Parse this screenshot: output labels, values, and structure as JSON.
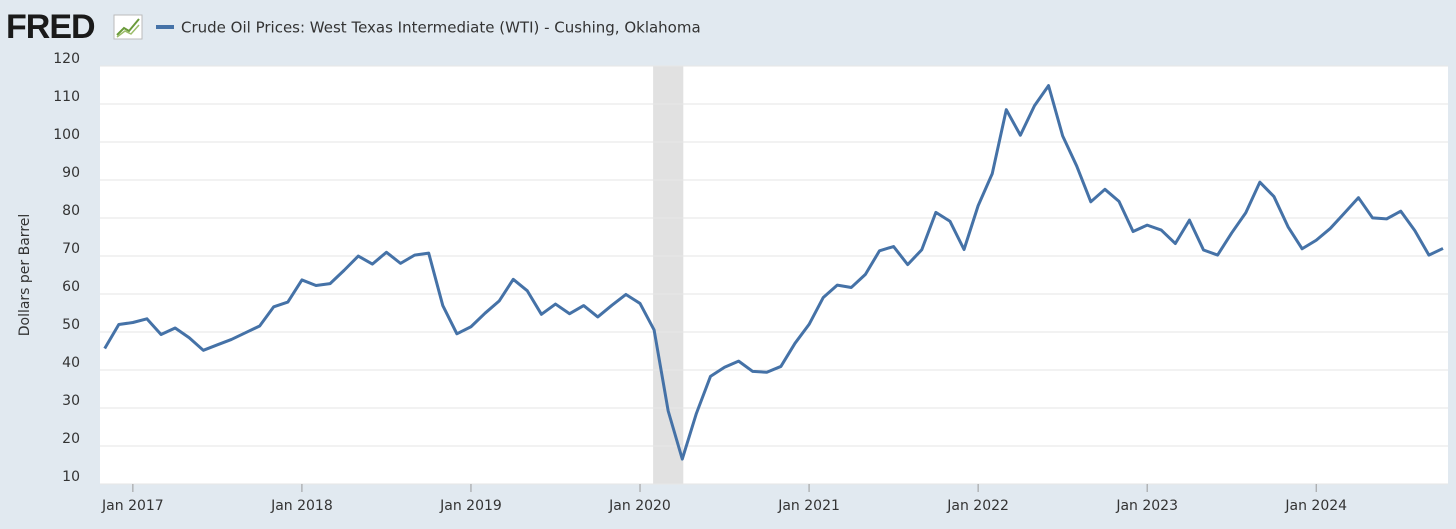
{
  "logo": "FRED",
  "chart_data": {
    "type": "line",
    "series": [
      {
        "name": "Crude Oil Prices: West Texas Intermediate (WTI) - Cushing, Oklahoma",
        "color": "#4572a7",
        "values": [
          45.66,
          51.97,
          52.5,
          53.47,
          49.33,
          51.06,
          48.48,
          45.18,
          46.63,
          48.04,
          49.82,
          51.58,
          56.64,
          57.88,
          63.7,
          62.23,
          62.73,
          66.25,
          69.98,
          67.87,
          70.98,
          68.06,
          70.23,
          70.75,
          56.96,
          49.52,
          51.38,
          54.95,
          58.15,
          63.86,
          60.83,
          54.66,
          57.35,
          54.81,
          56.95,
          53.96,
          57.03,
          59.88,
          57.52,
          50.54,
          29.21,
          16.55,
          28.56,
          38.31,
          40.71,
          42.34,
          39.63,
          39.4,
          40.94,
          47.02,
          52.0,
          59.04,
          62.33,
          61.72,
          65.17,
          71.38,
          72.49,
          67.73,
          71.65,
          81.48,
          79.15,
          71.71,
          83.22,
          91.64,
          108.5,
          101.78,
          109.55,
          114.84,
          101.62,
          93.67,
          84.26,
          87.55,
          84.37,
          76.44,
          78.12,
          76.83,
          73.28,
          79.45,
          71.58,
          70.25,
          76.07,
          81.39,
          89.43,
          85.64,
          77.69,
          71.9,
          74.15,
          77.25,
          81.28,
          85.35,
          80.02,
          79.77,
          81.8,
          76.68,
          70.24,
          71.99
        ]
      }
    ],
    "x": [
      "2016-11",
      "2016-12",
      "2017-01",
      "2017-02",
      "2017-03",
      "2017-04",
      "2017-05",
      "2017-06",
      "2017-07",
      "2017-08",
      "2017-09",
      "2017-10",
      "2017-11",
      "2017-12",
      "2018-01",
      "2018-02",
      "2018-03",
      "2018-04",
      "2018-05",
      "2018-06",
      "2018-07",
      "2018-08",
      "2018-09",
      "2018-10",
      "2018-11",
      "2018-12",
      "2019-01",
      "2019-02",
      "2019-03",
      "2019-04",
      "2019-05",
      "2019-06",
      "2019-07",
      "2019-08",
      "2019-09",
      "2019-10",
      "2019-11",
      "2019-12",
      "2020-01",
      "2020-02",
      "2020-03",
      "2020-04",
      "2020-05",
      "2020-06",
      "2020-07",
      "2020-08",
      "2020-09",
      "2020-10",
      "2020-11",
      "2020-12",
      "2021-01",
      "2021-02",
      "2021-03",
      "2021-04",
      "2021-05",
      "2021-06",
      "2021-07",
      "2021-08",
      "2021-09",
      "2021-10",
      "2021-11",
      "2021-12",
      "2022-01",
      "2022-02",
      "2022-03",
      "2022-04",
      "2022-05",
      "2022-06",
      "2022-07",
      "2022-08",
      "2022-09",
      "2022-10",
      "2022-11",
      "2022-12",
      "2023-01",
      "2023-02",
      "2023-03",
      "2023-04",
      "2023-05",
      "2023-06",
      "2023-07",
      "2023-08",
      "2023-09",
      "2023-10",
      "2023-11",
      "2023-12",
      "2024-01",
      "2024-02",
      "2024-03",
      "2024-04",
      "2024-05",
      "2024-06",
      "2024-07",
      "2024-08",
      "2024-09",
      "2024-10"
    ],
    "xlim": [
      "2016-11",
      "2024-10"
    ],
    "xticks": [
      {
        "value": "2017-01",
        "label": "Jan 2017"
      },
      {
        "value": "2018-01",
        "label": "Jan 2018"
      },
      {
        "value": "2019-01",
        "label": "Jan 2019"
      },
      {
        "value": "2020-01",
        "label": "Jan 2020"
      },
      {
        "value": "2021-01",
        "label": "Jan 2021"
      },
      {
        "value": "2022-01",
        "label": "Jan 2022"
      },
      {
        "value": "2023-01",
        "label": "Jan 2023"
      },
      {
        "value": "2024-01",
        "label": "Jan 2024"
      }
    ],
    "ylim": [
      10,
      120
    ],
    "yticks": [
      10,
      20,
      30,
      40,
      50,
      60,
      70,
      80,
      90,
      100,
      110,
      120
    ],
    "ylabel": "Dollars per Barrel",
    "grid": true,
    "recession": [
      {
        "start": "2020-02",
        "end": "2020-04"
      }
    ]
  }
}
